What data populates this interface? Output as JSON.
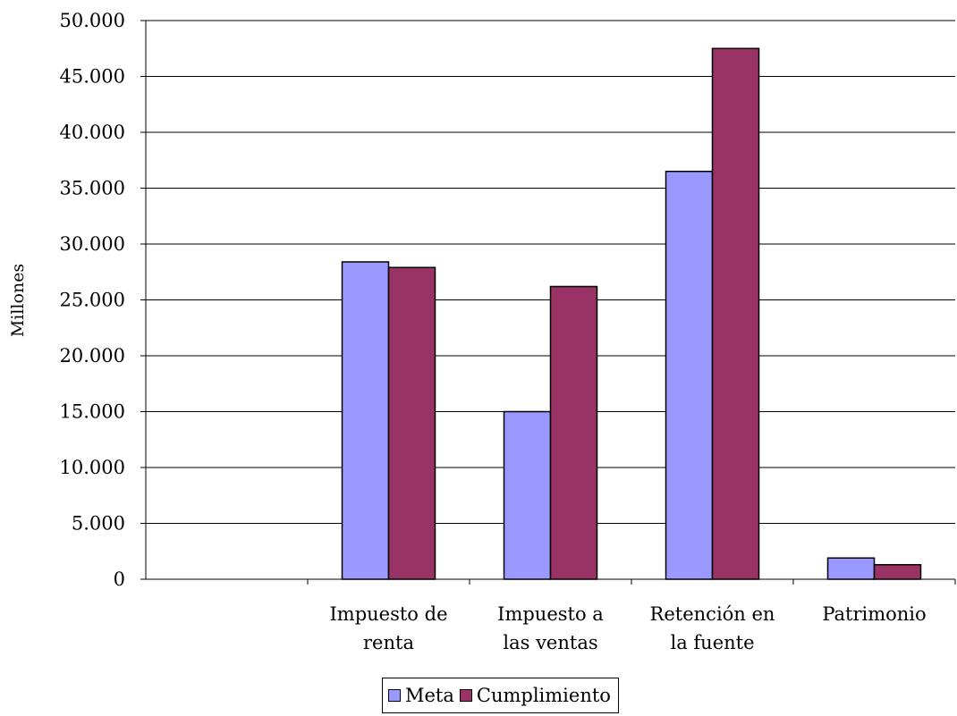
{
  "chart_data": {
    "type": "bar",
    "categories": [
      "",
      "Impuesto de renta",
      "Impuesto a las ventas",
      "Retención en la fuente",
      "Patrimonio"
    ],
    "category_lines": [
      [
        ""
      ],
      [
        "Impuesto de",
        "renta"
      ],
      [
        "Impuesto a",
        "las ventas"
      ],
      [
        "Retención en",
        "la fuente"
      ],
      [
        "Patrimonio"
      ]
    ],
    "series": [
      {
        "name": "Meta",
        "color": "#9999ff",
        "values": [
          null,
          28400,
          15000,
          36500,
          1900
        ]
      },
      {
        "name": "Cumplimiento",
        "color": "#993366",
        "values": [
          null,
          27900,
          26200,
          47500,
          1300
        ]
      }
    ],
    "ylabel": "Millones",
    "ylim": [
      0,
      50000
    ],
    "yticks": [
      "0",
      "5.000",
      "10.000",
      "15.000",
      "20.000",
      "25.000",
      "30.000",
      "35.000",
      "40.000",
      "45.000",
      "50.000"
    ],
    "ytick_values": [
      0,
      5000,
      10000,
      15000,
      20000,
      25000,
      30000,
      35000,
      40000,
      45000,
      50000
    ],
    "grid": true,
    "legend": "bottom"
  }
}
